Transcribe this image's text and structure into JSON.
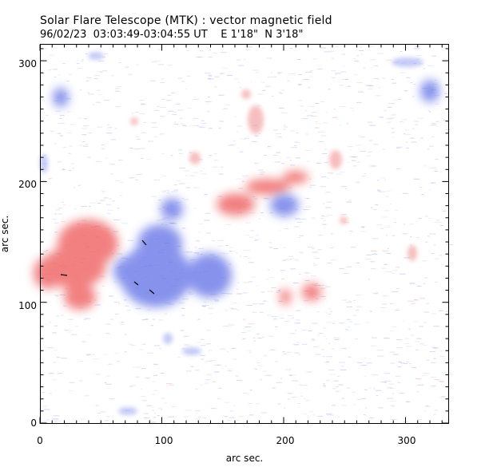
{
  "header": {
    "title": "Solar Flare Telescope (MTK) : vector magnetic field",
    "subtitle": "96/02/23  03:03:49-03:04:55 UT    E 1'18\"  N 3'18\""
  },
  "chart_data": {
    "type": "heatmap",
    "xlabel": "arc sec.",
    "ylabel": "arc sec.",
    "xlim": [
      0,
      336
    ],
    "ylim": [
      0,
      315
    ],
    "xticks": [
      "0",
      "100",
      "200",
      "300"
    ],
    "yticks": [
      "0",
      "100",
      "200",
      "300"
    ],
    "grid": false,
    "colors": {
      "positive": "#f06a6a",
      "negative": "#6a78e8",
      "vector": "#000000"
    }
  }
}
